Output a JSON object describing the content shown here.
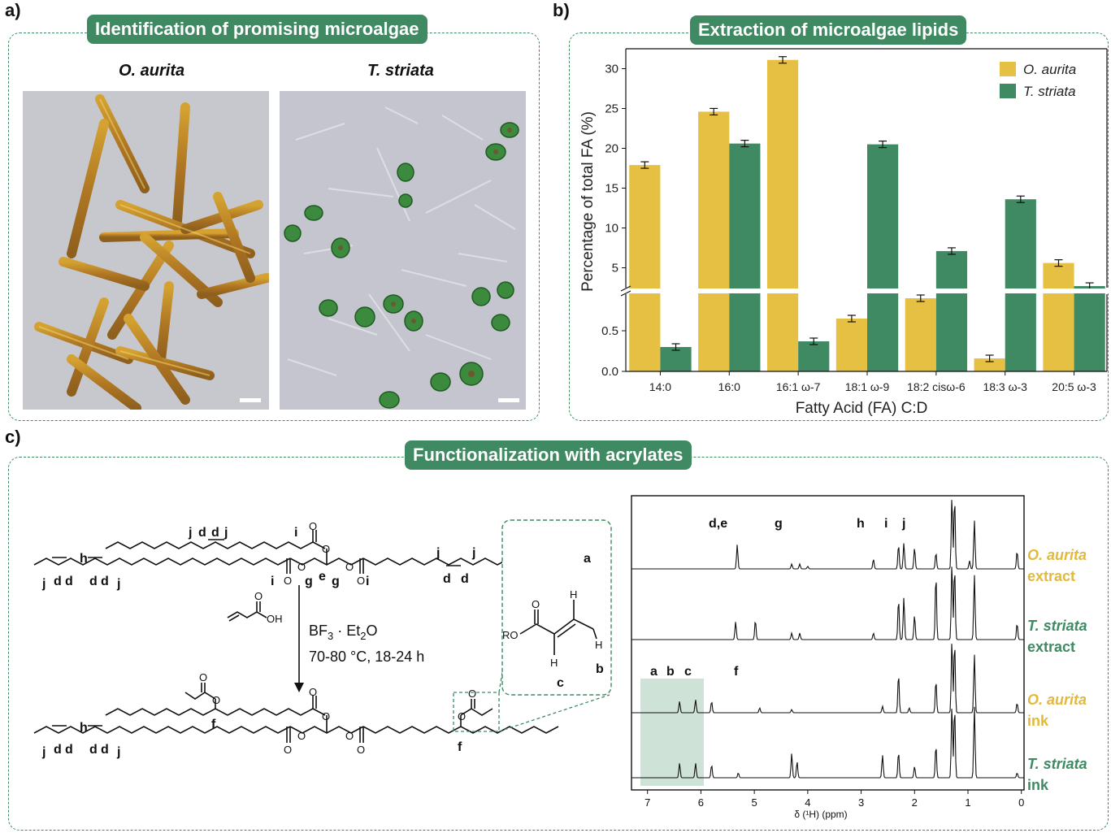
{
  "panel_a": {
    "label": "a)",
    "title": "Identification of promising microalgae",
    "left_caption": "O. aurita",
    "right_caption": "T. striata"
  },
  "panel_b": {
    "label": "b)",
    "title": "Extraction of microalgae lipids"
  },
  "panel_c": {
    "label": "c)",
    "title": "Functionalization with acrylates",
    "reagent": "BF3 · Et2O",
    "reagent_main": "BF",
    "reagent_sub1": "3",
    "reagent_mid": " · Et",
    "reagent_sub2": "2",
    "reagent_end": "O",
    "conditions": "70-80 °C, 18-24 h",
    "acid_oh": "OH",
    "ro": "RO",
    "letters": {
      "a": "a",
      "b": "b",
      "c": "c",
      "d": "d",
      "e": "e",
      "f": "f",
      "g": "g",
      "h": "h",
      "i": "i",
      "j": "j",
      "de": "d,e"
    },
    "h_atom": "H",
    "o_atom": "O",
    "nmr": {
      "xlabel": "δ (¹H) (ppm)",
      "ticks": [
        "7",
        "6",
        "5",
        "4",
        "3",
        "2",
        "1",
        "0"
      ],
      "peak_labels": [
        "d,e",
        "g",
        "h",
        "i",
        "j",
        "a",
        "b",
        "c",
        "f"
      ],
      "traces": [
        {
          "line1": "O. aurita",
          "line2": "extract",
          "color": "#e2b93a"
        },
        {
          "line1": "T. striata",
          "line2": "extract",
          "color": "#3f8a62"
        },
        {
          "line1": "O. aurita",
          "line2": "ink",
          "color": "#e2b93a"
        },
        {
          "line1": "T. striata",
          "line2": "ink",
          "color": "#3f8a62"
        }
      ]
    }
  },
  "chart_data": {
    "type": "bar",
    "categories": [
      "14:0",
      "16:0",
      "16:1 ω-7",
      "18:1 ω-9",
      "18:2 cisω-6",
      "18:3 ω-3",
      "20:5 ω-3"
    ],
    "series": [
      {
        "name": "O. aurita",
        "color": "#e6c042",
        "values": [
          17.9,
          24.6,
          31.1,
          0.65,
          0.9,
          0.16,
          5.6
        ]
      },
      {
        "name": "T. striata",
        "color": "#3f8a62",
        "values": [
          0.3,
          20.6,
          0.37,
          20.5,
          7.1,
          13.6,
          2.7
        ]
      }
    ],
    "xlabel": "Fatty Acid (FA) C:D",
    "ylabel": "Percentage of total FA (%)",
    "y_lower_ticks": [
      "0.0",
      "0.5"
    ],
    "y_upper_ticks": [
      "5",
      "10",
      "15",
      "20",
      "25",
      "30"
    ],
    "y_lower_range": [
      0,
      0.95
    ],
    "y_upper_range": [
      2.5,
      32.5
    ],
    "axis_break": true,
    "legend_position": "top-right"
  }
}
